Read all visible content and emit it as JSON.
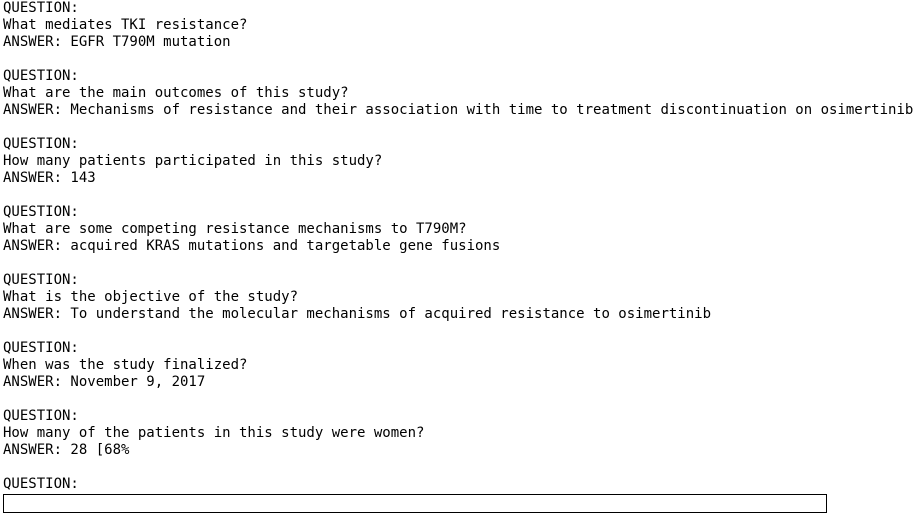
{
  "qa": [
    {
      "label": "QUESTION:",
      "question": "What mediates TKI resistance?",
      "answer": "ANSWER: EGFR T790M mutation"
    },
    {
      "label": "QUESTION:",
      "question": "What are the main outcomes of this study?",
      "answer": "ANSWER: Mechanisms of resistance and their association with time to treatment discontinuation on osimertinib"
    },
    {
      "label": "QUESTION:",
      "question": "How many patients participated in this study?",
      "answer": "ANSWER: 143"
    },
    {
      "label": "QUESTION:",
      "question": "What are some competing resistance mechanisms to T790M?",
      "answer": "ANSWER: acquired KRAS mutations and targetable gene fusions"
    },
    {
      "label": "QUESTION:",
      "question": "What is the objective of the study?",
      "answer": "ANSWER: To understand the molecular mechanisms of acquired resistance to osimertinib"
    },
    {
      "label": "QUESTION:",
      "question": "When was the study finalized?",
      "answer": "ANSWER: November 9, 2017"
    },
    {
      "label": "QUESTION:",
      "question": "How many of the patients in this study were women?",
      "answer": "ANSWER: 28 [68%"
    }
  ],
  "prompt": {
    "label": "QUESTION:"
  }
}
